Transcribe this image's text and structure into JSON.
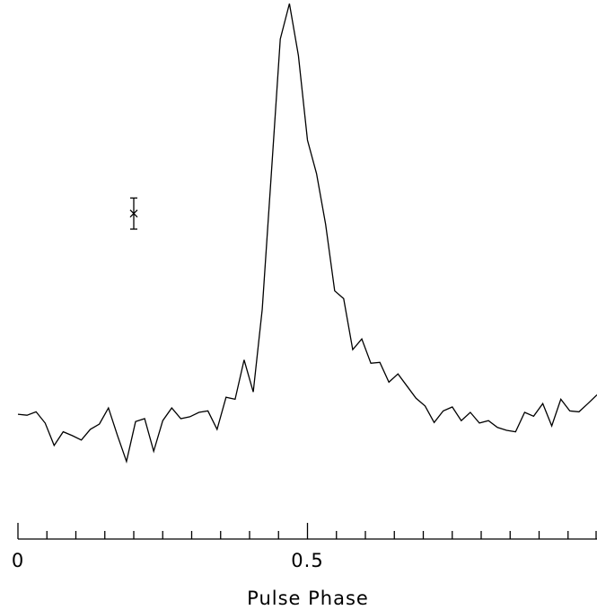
{
  "chart_data": {
    "type": "line",
    "title": "",
    "xlabel": "Pulse Phase",
    "ylabel": "",
    "xlim": [
      0,
      1
    ],
    "ylim": [
      0,
      1
    ],
    "grid": false,
    "x_tick_labels": [
      "0",
      "0.5"
    ],
    "x_tick_values": [
      0,
      0.5
    ],
    "x_minor_tick_step": 0.05,
    "series": [
      {
        "x": [
          0,
          0.0156,
          0.0313,
          0.0469,
          0.0625,
          0.0781,
          0.0938,
          0.1094,
          0.125,
          0.1406,
          0.1563,
          0.1719,
          0.1875,
          0.2031,
          0.2188,
          0.2344,
          0.25,
          0.2656,
          0.2813,
          0.2969,
          0.3125,
          0.3281,
          0.3438,
          0.3594,
          0.375,
          0.3906,
          0.4063,
          0.4219,
          0.4375,
          0.4531,
          0.4688,
          0.4844,
          0.5,
          0.5156,
          0.5313,
          0.5469,
          0.5625,
          0.5781,
          0.5938,
          0.6094,
          0.625,
          0.6406,
          0.6563,
          0.6719,
          0.6875,
          0.7031,
          0.7188,
          0.7344,
          0.75,
          0.7656,
          0.7813,
          0.7969,
          0.8125,
          0.8281,
          0.8438,
          0.8594,
          0.875,
          0.8906,
          0.9063,
          0.9219,
          0.9375,
          0.9531,
          0.9688,
          0.9844,
          1.0
        ],
        "values": [
          0.155,
          0.153,
          0.16,
          0.137,
          0.091,
          0.119,
          0.111,
          0.102,
          0.124,
          0.135,
          0.168,
          0.111,
          0.058,
          0.14,
          0.146,
          0.079,
          0.142,
          0.168,
          0.146,
          0.15,
          0.159,
          0.162,
          0.124,
          0.19,
          0.186,
          0.267,
          0.201,
          0.371,
          0.649,
          0.927,
          1.0,
          0.893,
          0.719,
          0.65,
          0.546,
          0.409,
          0.393,
          0.288,
          0.31,
          0.26,
          0.262,
          0.221,
          0.238,
          0.213,
          0.188,
          0.172,
          0.138,
          0.162,
          0.17,
          0.142,
          0.159,
          0.137,
          0.142,
          0.128,
          0.122,
          0.119,
          0.159,
          0.151,
          0.177,
          0.131,
          0.186,
          0.162,
          0.16,
          0.177,
          0.195
        ]
      }
    ],
    "error_bar": {
      "x": 0.2,
      "y": 0.568,
      "low": 0.536,
      "high": 0.6
    }
  }
}
